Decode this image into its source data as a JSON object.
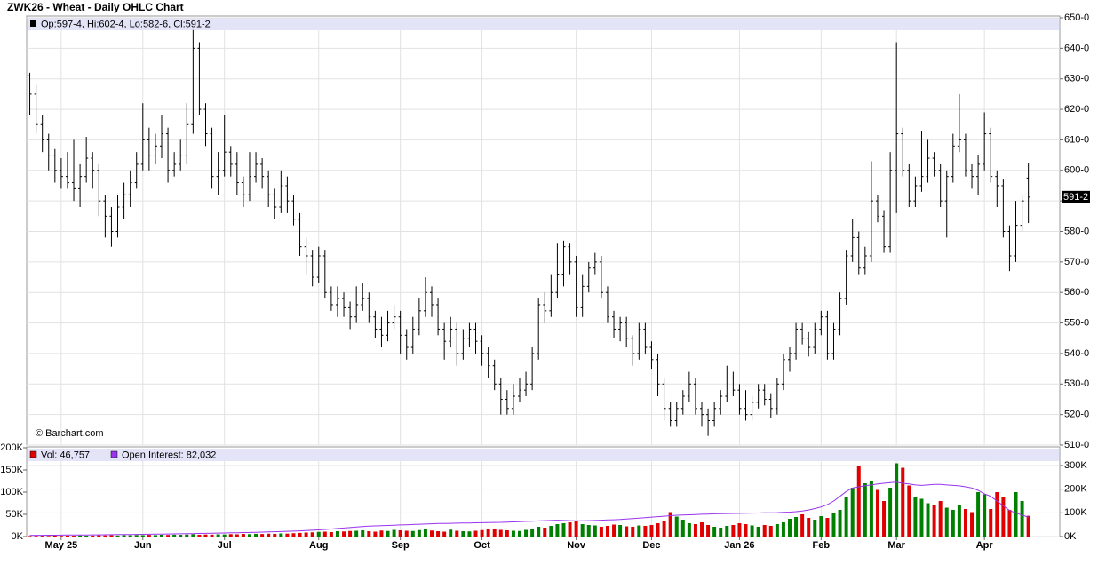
{
  "chart_data": {
    "type": "ohlc",
    "title": "ZWK26 - Wheat - Daily OHLC Chart",
    "legend_text": "Op:597-4, Hi:602-4, Lo:582-6, Cl:591-2",
    "watermark": "© Barchart.com",
    "last": {
      "value": 591.25,
      "label": "591-2"
    },
    "ylim": [
      510,
      650
    ],
    "yticks": [
      {
        "value": 510,
        "label": "510-0"
      },
      {
        "value": 520,
        "label": "520-0"
      },
      {
        "value": 530,
        "label": "530-0"
      },
      {
        "value": 540,
        "label": "540-0"
      },
      {
        "value": 550,
        "label": "550-0"
      },
      {
        "value": 560,
        "label": "560-0"
      },
      {
        "value": 570,
        "label": "570-0"
      },
      {
        "value": 580,
        "label": "580-0"
      },
      {
        "value": 590,
        "label": "590-0"
      },
      {
        "value": 600,
        "label": "600-0"
      },
      {
        "value": 610,
        "label": "610-0"
      },
      {
        "value": 620,
        "label": "620-0"
      },
      {
        "value": 630,
        "label": "630-0"
      },
      {
        "value": 640,
        "label": "640-0"
      },
      {
        "value": 650,
        "label": "650-0"
      }
    ],
    "xlim": [
      -0.5,
      164
    ],
    "xticks": [
      {
        "value": 5,
        "label": "May 25"
      },
      {
        "value": 18,
        "label": "Jun"
      },
      {
        "value": 31,
        "label": "Jul"
      },
      {
        "value": 46,
        "label": "Aug"
      },
      {
        "value": 59,
        "label": "Sep"
      },
      {
        "value": 72,
        "label": "Oct"
      },
      {
        "value": 87,
        "label": "Nov"
      },
      {
        "value": 99,
        "label": "Dec"
      },
      {
        "value": 113,
        "label": "Jan 26"
      },
      {
        "value": 126,
        "label": "Feb"
      },
      {
        "value": 138,
        "label": "Mar"
      },
      {
        "value": 152,
        "label": "Apr"
      }
    ],
    "grid": true,
    "ohlc": [
      [
        631,
        632,
        618,
        625
      ],
      [
        625,
        628,
        612,
        615
      ],
      [
        615,
        618,
        606,
        610
      ],
      [
        610,
        612,
        600,
        605
      ],
      [
        605,
        607,
        596,
        600
      ],
      [
        600,
        604,
        594,
        598
      ],
      [
        598,
        606,
        594,
        596
      ],
      [
        596,
        610,
        590,
        594
      ],
      [
        594,
        602,
        588,
        598
      ],
      [
        598,
        611,
        596,
        604
      ],
      [
        604,
        606,
        594,
        600
      ],
      [
        600,
        602,
        585,
        590
      ],
      [
        590,
        592,
        578,
        585
      ],
      [
        585,
        588,
        575,
        580
      ],
      [
        580,
        592,
        578,
        588
      ],
      [
        588,
        596,
        584,
        592
      ],
      [
        592,
        600,
        588,
        596
      ],
      [
        596,
        606,
        594,
        602
      ],
      [
        602,
        622,
        600,
        610
      ],
      [
        610,
        614,
        600,
        605
      ],
      [
        605,
        612,
        602,
        608
      ],
      [
        608,
        618,
        604,
        612
      ],
      [
        612,
        614,
        596,
        600
      ],
      [
        600,
        606,
        598,
        602
      ],
      [
        602,
        610,
        600,
        605
      ],
      [
        605,
        622,
        602,
        615
      ],
      [
        615,
        646,
        612,
        640
      ],
      [
        640,
        642,
        618,
        620
      ],
      [
        620,
        622,
        608,
        612
      ],
      [
        612,
        614,
        594,
        598
      ],
      [
        598,
        606,
        592,
        600
      ],
      [
        600,
        618,
        598,
        606
      ],
      [
        606,
        608,
        598,
        602
      ],
      [
        602,
        606,
        592,
        596
      ],
      [
        596,
        598,
        588,
        592
      ],
      [
        592,
        606,
        590,
        598
      ],
      [
        598,
        606,
        596,
        602
      ],
      [
        602,
        604,
        594,
        598
      ],
      [
        598,
        600,
        588,
        592
      ],
      [
        592,
        594,
        584,
        588
      ],
      [
        588,
        600,
        586,
        595
      ],
      [
        595,
        598,
        586,
        590
      ],
      [
        590,
        592,
        582,
        584
      ],
      [
        584,
        586,
        572,
        575
      ],
      [
        575,
        578,
        566,
        572
      ],
      [
        572,
        574,
        562,
        565
      ],
      [
        565,
        575,
        563,
        572
      ],
      [
        572,
        574,
        558,
        560
      ],
      [
        560,
        562,
        554,
        556
      ],
      [
        556,
        562,
        552,
        558
      ],
      [
        558,
        560,
        552,
        555
      ],
      [
        555,
        557,
        548,
        552
      ],
      [
        552,
        562,
        550,
        556
      ],
      [
        556,
        563,
        554,
        558
      ],
      [
        558,
        560,
        550,
        552
      ],
      [
        552,
        554,
        545,
        548
      ],
      [
        548,
        552,
        542,
        546
      ],
      [
        546,
        554,
        544,
        550
      ],
      [
        550,
        556,
        548,
        552
      ],
      [
        552,
        554,
        540,
        546
      ],
      [
        546,
        548,
        538,
        542
      ],
      [
        542,
        552,
        540,
        548
      ],
      [
        548,
        558,
        546,
        554
      ],
      [
        554,
        565,
        552,
        560
      ],
      [
        560,
        562,
        552,
        556
      ],
      [
        556,
        558,
        546,
        548
      ],
      [
        548,
        550,
        538,
        544
      ],
      [
        544,
        552,
        542,
        548
      ],
      [
        548,
        550,
        536,
        540
      ],
      [
        540,
        548,
        538,
        545
      ],
      [
        545,
        550,
        542,
        548
      ],
      [
        548,
        550,
        540,
        544
      ],
      [
        544,
        546,
        536,
        540
      ],
      [
        540,
        542,
        532,
        536
      ],
      [
        536,
        538,
        528,
        530
      ],
      [
        530,
        532,
        520,
        525
      ],
      [
        525,
        528,
        520,
        522
      ],
      [
        522,
        530,
        520,
        526
      ],
      [
        526,
        532,
        524,
        528
      ],
      [
        528,
        534,
        526,
        530
      ],
      [
        530,
        542,
        528,
        540
      ],
      [
        540,
        558,
        538,
        556
      ],
      [
        556,
        560,
        550,
        554
      ],
      [
        554,
        566,
        552,
        560
      ],
      [
        560,
        576,
        558,
        566
      ],
      [
        566,
        577,
        562,
        575
      ],
      [
        575,
        576,
        566,
        570
      ],
      [
        570,
        572,
        552,
        555
      ],
      [
        555,
        566,
        552,
        562
      ],
      [
        562,
        570,
        560,
        568
      ],
      [
        568,
        573,
        566,
        570
      ],
      [
        570,
        572,
        558,
        560
      ],
      [
        560,
        562,
        550,
        552
      ],
      [
        552,
        554,
        545,
        548
      ],
      [
        548,
        552,
        544,
        550
      ],
      [
        550,
        552,
        542,
        545
      ],
      [
        545,
        546,
        536,
        540
      ],
      [
        540,
        550,
        538,
        548
      ],
      [
        548,
        550,
        540,
        542
      ],
      [
        542,
        544,
        535,
        538
      ],
      [
        538,
        540,
        526,
        530
      ],
      [
        530,
        532,
        518,
        522
      ],
      [
        522,
        524,
        516,
        518
      ],
      [
        518,
        524,
        516,
        522
      ],
      [
        522,
        528,
        520,
        526
      ],
      [
        526,
        534,
        524,
        530
      ],
      [
        530,
        532,
        520,
        522
      ],
      [
        522,
        524,
        516,
        520
      ],
      [
        520,
        522,
        513,
        518
      ],
      [
        518,
        524,
        516,
        522
      ],
      [
        522,
        528,
        520,
        526
      ],
      [
        526,
        536,
        524,
        532
      ],
      [
        532,
        534,
        526,
        528
      ],
      [
        528,
        530,
        520,
        522
      ],
      [
        522,
        528,
        518,
        520
      ],
      [
        520,
        526,
        518,
        524
      ],
      [
        524,
        530,
        522,
        528
      ],
      [
        528,
        530,
        523,
        525
      ],
      [
        525,
        527,
        519,
        522
      ],
      [
        522,
        532,
        520,
        530
      ],
      [
        530,
        540,
        528,
        538
      ],
      [
        538,
        542,
        534,
        540
      ],
      [
        540,
        550,
        538,
        548
      ],
      [
        548,
        550,
        543,
        545
      ],
      [
        545,
        547,
        539,
        542
      ],
      [
        542,
        550,
        540,
        548
      ],
      [
        548,
        554,
        546,
        552
      ],
      [
        552,
        554,
        538,
        540
      ],
      [
        540,
        550,
        538,
        548
      ],
      [
        548,
        560,
        546,
        558
      ],
      [
        558,
        574,
        556,
        572
      ],
      [
        572,
        584,
        570,
        578
      ],
      [
        578,
        580,
        566,
        568
      ],
      [
        568,
        575,
        566,
        572
      ],
      [
        572,
        603,
        570,
        590
      ],
      [
        590,
        592,
        583,
        585
      ],
      [
        585,
        587,
        573,
        575
      ],
      [
        575,
        606,
        573,
        600
      ],
      [
        600,
        642,
        586,
        612
      ],
      [
        612,
        614,
        598,
        600
      ],
      [
        600,
        602,
        588,
        590
      ],
      [
        590,
        598,
        588,
        595
      ],
      [
        595,
        613,
        593,
        598
      ],
      [
        598,
        610,
        596,
        604
      ],
      [
        604,
        606,
        598,
        600
      ],
      [
        600,
        602,
        588,
        590
      ],
      [
        590,
        600,
        578,
        598
      ],
      [
        598,
        612,
        596,
        608
      ],
      [
        608,
        625,
        606,
        610
      ],
      [
        610,
        612,
        598,
        600
      ],
      [
        600,
        602,
        594,
        598
      ],
      [
        598,
        605,
        592,
        602
      ],
      [
        602,
        619,
        600,
        612
      ],
      [
        612,
        614,
        596,
        598
      ],
      [
        598,
        600,
        588,
        595
      ],
      [
        595,
        597,
        578,
        580
      ],
      [
        580,
        582,
        567,
        572
      ],
      [
        572,
        590,
        570,
        582
      ],
      [
        582,
        592,
        580,
        590
      ],
      [
        597.5,
        602.5,
        582.75,
        591.25
      ]
    ],
    "volume": {
      "legend": "Vol: 46,757",
      "up_color": "#008000",
      "down_color": "#e00000",
      "ylim": [
        0,
        200000
      ],
      "yticks": [
        {
          "value": 0,
          "label": "0K"
        },
        {
          "value": 50000,
          "label": "50K"
        },
        {
          "value": 100000,
          "label": "100K"
        },
        {
          "value": 150000,
          "label": "150K"
        },
        {
          "value": 200000,
          "label": "200K"
        }
      ],
      "values": [
        1200,
        1500,
        1800,
        1400,
        2000,
        1600,
        2200,
        1900,
        2500,
        2100,
        2300,
        2800,
        2600,
        3000,
        2400,
        3200,
        2900,
        3500,
        3100,
        3800,
        3300,
        4000,
        3600,
        4200,
        3900,
        4500,
        5200,
        4100,
        4600,
        4300,
        5000,
        4700,
        5500,
        5100,
        6000,
        5400,
        6200,
        5800,
        6500,
        6100,
        7000,
        6600,
        7500,
        8200,
        9000,
        9500,
        10500,
        11000,
        10000,
        12000,
        11500,
        12500,
        13000,
        14000,
        12000,
        11000,
        13500,
        12500,
        15000,
        14000,
        13000,
        12500,
        14500,
        16000,
        13500,
        12000,
        11000,
        15500,
        13000,
        12000,
        11500,
        13000,
        14500,
        16000,
        18000,
        15000,
        14000,
        13000,
        12500,
        15000,
        17000,
        22000,
        20000,
        24000,
        28000,
        30000,
        32000,
        34000,
        28000,
        26000,
        25000,
        22000,
        24000,
        27000,
        26000,
        23000,
        22000,
        25000,
        24000,
        26000,
        30000,
        35000,
        55000,
        45000,
        38000,
        30000,
        28000,
        32000,
        26000,
        22000,
        20000,
        24000,
        26000,
        30000,
        28000,
        25000,
        22000,
        26000,
        24000,
        28000,
        32000,
        40000,
        44000,
        50000,
        42000,
        38000,
        46000,
        42000,
        52000,
        60000,
        90000,
        110000,
        160000,
        120000,
        125000,
        105000,
        80000,
        110000,
        165000,
        155000,
        115000,
        90000,
        85000,
        75000,
        70000,
        80000,
        65000,
        60000,
        70000,
        62000,
        55000,
        100000,
        95000,
        62000,
        100000,
        90000,
        60000,
        100000,
        80000,
        46757
      ]
    },
    "open_interest": {
      "legend": "Open Interest: 82,032",
      "color": "#9933ee",
      "y2lim": [
        0,
        375000
      ],
      "y2ticks": [
        {
          "value": 0,
          "label": "0K"
        },
        {
          "value": 100000,
          "label": "100K"
        },
        {
          "value": 200000,
          "label": "200K"
        },
        {
          "value": 300000,
          "label": "300K"
        }
      ],
      "values": [
        5000,
        5200,
        5400,
        5600,
        5800,
        6000,
        6200,
        6400,
        6600,
        6800,
        7000,
        7300,
        7600,
        7900,
        8200,
        8500,
        8800,
        9100,
        9400,
        9700,
        10000,
        10400,
        10800,
        11200,
        11600,
        12000,
        12500,
        13000,
        13500,
        14000,
        14500,
        15000,
        15600,
        16200,
        16800,
        17400,
        18000,
        18700,
        19400,
        20100,
        21000,
        22000,
        23000,
        24000,
        25000,
        26500,
        28000,
        30000,
        32000,
        34000,
        36000,
        38000,
        40000,
        42000,
        44000,
        45000,
        46000,
        47000,
        48000,
        49000,
        50000,
        51000,
        52000,
        53000,
        54000,
        55000,
        55500,
        56000,
        56500,
        57000,
        57500,
        58000,
        58500,
        59000,
        59500,
        60000,
        61000,
        62000,
        63000,
        64000,
        65000,
        66000,
        67000,
        68000,
        69000,
        68000,
        67000,
        66000,
        66500,
        67000,
        68000,
        69000,
        70000,
        71000,
        72000,
        74000,
        76000,
        78000,
        80000,
        82000,
        84000,
        86000,
        88000,
        90000,
        91000,
        92000,
        93000,
        94000,
        95000,
        96000,
        96500,
        97000,
        97500,
        98000,
        98500,
        99000,
        99500,
        100000,
        100500,
        101000,
        102000,
        103000,
        105000,
        108000,
        112000,
        118000,
        125000,
        135000,
        150000,
        170000,
        190000,
        205000,
        210000,
        215000,
        218000,
        222000,
        225000,
        228000,
        230000,
        225000,
        222000,
        218000,
        216000,
        218000,
        220000,
        220000,
        218000,
        216000,
        214000,
        210000,
        205000,
        195000,
        180000,
        170000,
        150000,
        130000,
        110000,
        100000,
        90000,
        82032
      ]
    }
  }
}
